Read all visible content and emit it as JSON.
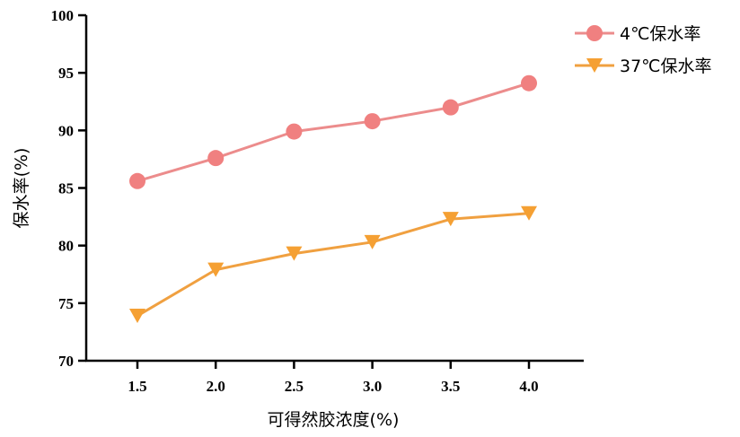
{
  "chart_data": {
    "type": "line",
    "title": "",
    "xlabel": "可得然胶浓度(%)",
    "ylabel": "保水率(%)",
    "x": [
      1.5,
      2.0,
      2.5,
      3.0,
      3.5,
      4.0
    ],
    "x_tick_labels": [
      "1.5",
      "2.0",
      "2.5",
      "3.0",
      "3.5",
      "4.0"
    ],
    "ylim": [
      70,
      100
    ],
    "y_ticks": [
      70,
      75,
      80,
      85,
      90,
      95,
      100
    ],
    "grid": false,
    "legend_position": "top-right",
    "series": [
      {
        "name": "4℃保水率",
        "values": [
          85.6,
          87.6,
          89.9,
          90.8,
          92.0,
          94.1
        ],
        "color": "#f08080",
        "line_color": "#ec8c8c",
        "marker": "circle"
      },
      {
        "name": "37℃保水率",
        "values": [
          73.9,
          77.9,
          79.3,
          80.3,
          82.3,
          82.8
        ],
        "color": "#f5a033",
        "line_color": "#f0a040",
        "marker": "triangle-down"
      }
    ]
  }
}
